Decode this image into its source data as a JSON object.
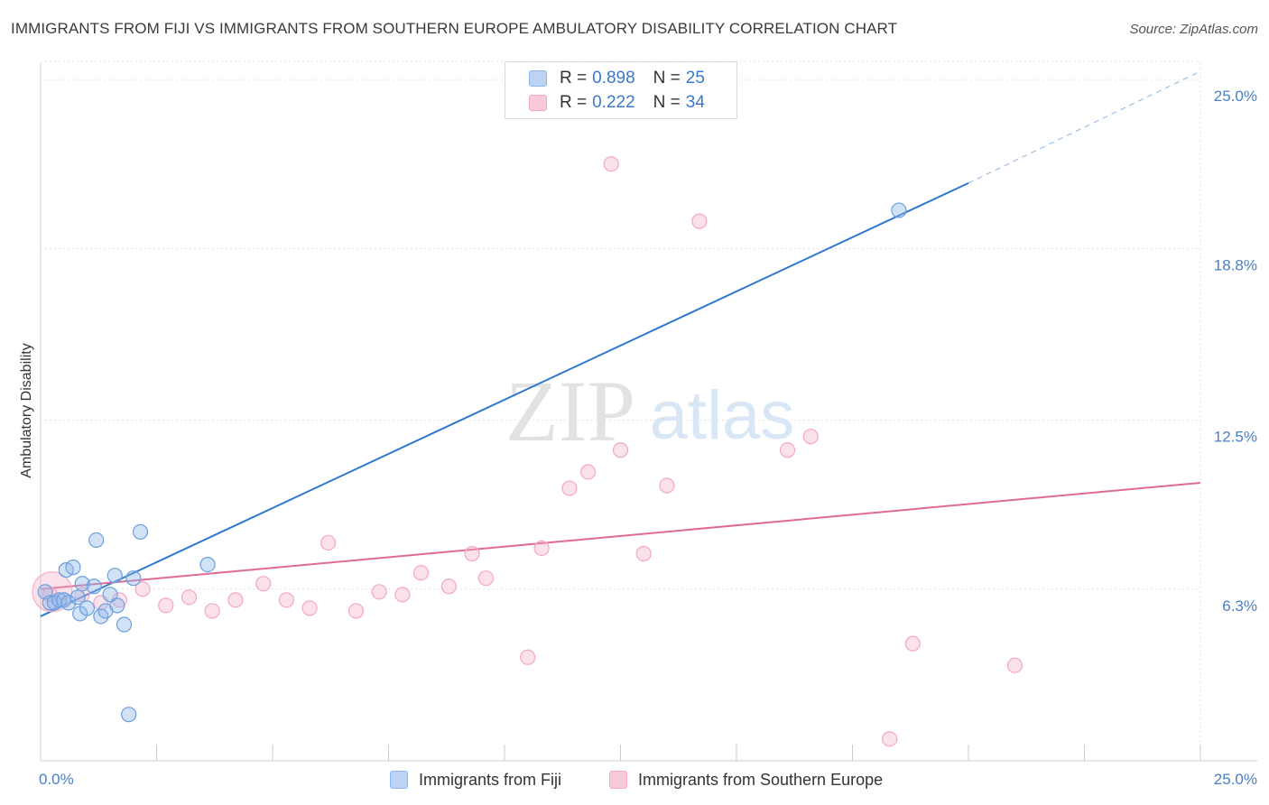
{
  "header": {
    "title": "IMMIGRANTS FROM FIJI VS IMMIGRANTS FROM SOUTHERN EUROPE AMBULATORY DISABILITY CORRELATION CHART",
    "source": "Source: ZipAtlas.com"
  },
  "watermark": {
    "zip": "ZIP",
    "atlas": "atlas"
  },
  "legend": {
    "rows": [
      {
        "r_label": "R =",
        "r_value": "0.898",
        "n_label": "N =",
        "n_value": "25"
      },
      {
        "r_label": "R =",
        "r_value": "0.222",
        "n_label": "N =",
        "n_value": "34"
      }
    ]
  },
  "chart_data": {
    "type": "scatter",
    "title": "IMMIGRANTS FROM FIJI VS IMMIGRANTS FROM SOUTHERN EUROPE AMBULATORY DISABILITY CORRELATION CHART",
    "xlabel": "",
    "ylabel": "Ambulatory Disability",
    "xlim": [
      0,
      25
    ],
    "ylim": [
      0,
      25.6
    ],
    "x_tick_labels": [
      "0.0%",
      "25.0%"
    ],
    "y_ticks": [
      6.3,
      12.5,
      18.8,
      25.0
    ],
    "y_tick_labels": [
      "6.3%",
      "12.5%",
      "18.8%",
      "25.0%"
    ],
    "grid": true,
    "legend_position": "top-center",
    "colors": {
      "fiji": "#8db7ea",
      "fiji_line": "#2f78d0",
      "seurope": "#f4a8c0",
      "seurope_line": "#e06a97"
    },
    "series": [
      {
        "name": "Immigrants from Fiji",
        "points": [
          [
            0.1,
            6.2
          ],
          [
            0.2,
            5.8
          ],
          [
            0.3,
            5.8
          ],
          [
            0.4,
            5.9
          ],
          [
            0.5,
            5.9
          ],
          [
            0.55,
            7.0
          ],
          [
            0.6,
            5.8
          ],
          [
            0.7,
            7.1
          ],
          [
            0.8,
            6.0
          ],
          [
            0.85,
            5.4
          ],
          [
            0.9,
            6.5
          ],
          [
            1.0,
            5.6
          ],
          [
            1.15,
            6.4
          ],
          [
            1.2,
            8.1
          ],
          [
            1.3,
            5.3
          ],
          [
            1.4,
            5.5
          ],
          [
            1.5,
            6.1
          ],
          [
            1.6,
            6.8
          ],
          [
            1.65,
            5.7
          ],
          [
            1.8,
            5.0
          ],
          [
            1.9,
            1.7
          ],
          [
            2.0,
            6.7
          ],
          [
            2.15,
            8.4
          ],
          [
            3.6,
            7.2
          ],
          [
            18.5,
            20.2
          ]
        ],
        "trend": {
          "x0": 0,
          "y0": 5.3,
          "x1": 20,
          "y1": 21.2,
          "dashed_to": [
            25,
            25.3
          ]
        }
      },
      {
        "name": "Immigrants from Southern Europe",
        "points": [
          [
            0.2,
            6.1
          ],
          [
            0.9,
            6.1
          ],
          [
            1.3,
            5.8
          ],
          [
            1.7,
            5.9
          ],
          [
            2.2,
            6.3
          ],
          [
            2.7,
            5.7
          ],
          [
            3.2,
            6.0
          ],
          [
            3.7,
            5.5
          ],
          [
            4.2,
            5.9
          ],
          [
            4.8,
            6.5
          ],
          [
            5.3,
            5.9
          ],
          [
            5.8,
            5.6
          ],
          [
            6.2,
            8.0
          ],
          [
            6.8,
            5.5
          ],
          [
            7.3,
            6.2
          ],
          [
            7.8,
            6.1
          ],
          [
            8.2,
            6.9
          ],
          [
            8.8,
            6.4
          ],
          [
            9.3,
            7.6
          ],
          [
            9.6,
            6.7
          ],
          [
            10.5,
            3.8
          ],
          [
            10.8,
            7.8
          ],
          [
            11.4,
            10.0
          ],
          [
            11.8,
            10.6
          ],
          [
            12.3,
            21.9
          ],
          [
            12.5,
            11.4
          ],
          [
            13.0,
            7.6
          ],
          [
            13.5,
            10.1
          ],
          [
            14.2,
            19.8
          ],
          [
            16.1,
            11.4
          ],
          [
            16.6,
            11.9
          ],
          [
            18.3,
            0.8
          ],
          [
            18.8,
            4.3
          ],
          [
            21.0,
            3.5
          ]
        ],
        "trend": {
          "x0": 0,
          "y0": 6.3,
          "x1": 25,
          "y1": 10.2
        }
      }
    ]
  },
  "bottom_legend": {
    "fiji_label": "Immigrants from Fiji",
    "seurope_label": "Immigrants from Southern Europe"
  }
}
